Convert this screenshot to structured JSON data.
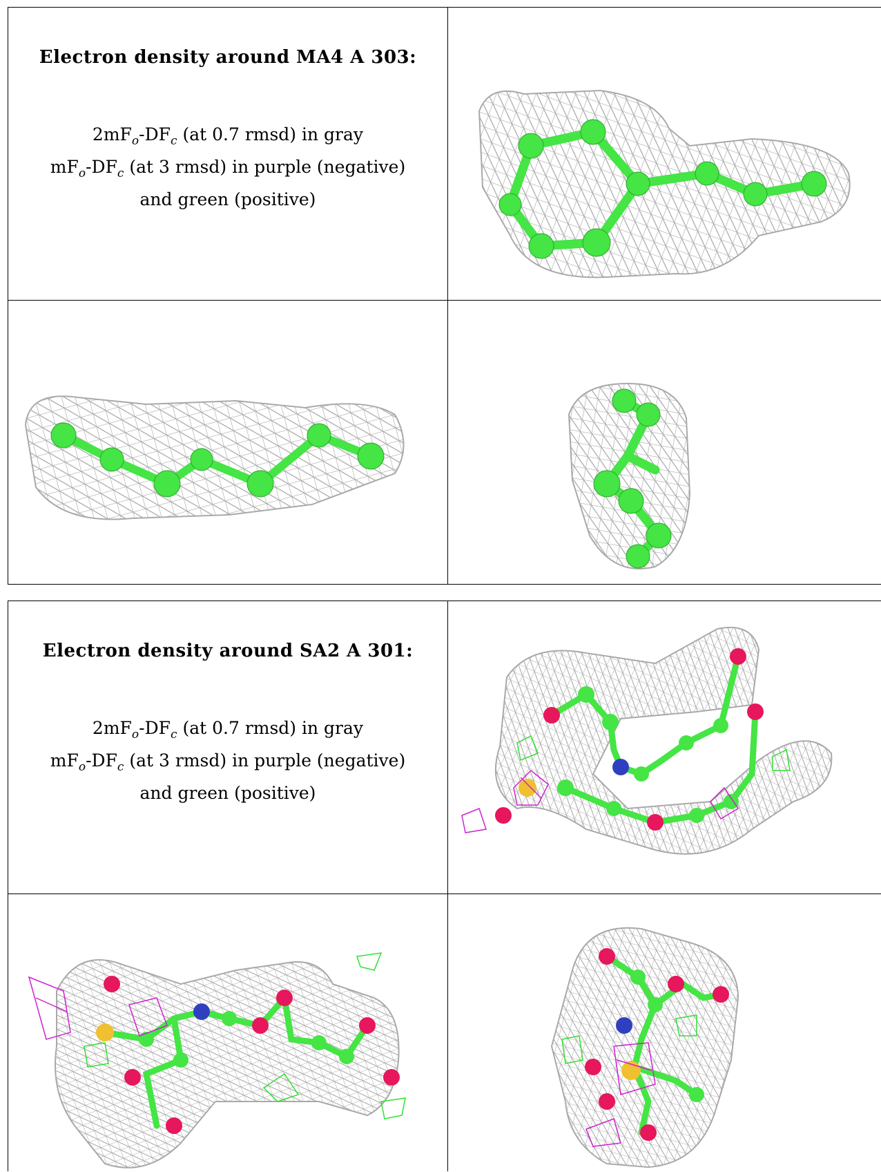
{
  "sections": [
    {
      "title": "Electron density around MA4 A 303:",
      "legend": {
        "line1": {
          "pre": "2mF",
          "s1": "o",
          "mid": "-DF",
          "s2": "c",
          "post": " (at 0.7 rmsd) in gray"
        },
        "line2": {
          "pre": "mF",
          "s1": "o",
          "mid": "-DF",
          "s2": "c",
          "post": " (at 3 rmsd) in purple (negative)"
        },
        "line3": "and green (positive)"
      }
    },
    {
      "title": "Electron density around SA2 A 301:",
      "legend": {
        "line1": {
          "pre": "2mF",
          "s1": "o",
          "mid": "-DF",
          "s2": "c",
          "post": " (at 0.7 rmsd) in gray"
        },
        "line2": {
          "pre": "mF",
          "s1": "o",
          "mid": "-DF",
          "s2": "c",
          "post": " (at 3 rmsd) in purple (negative)"
        },
        "line3": "and green (positive)"
      }
    }
  ],
  "colors": {
    "mesh_gray": "#a9a9a9",
    "carbon_green": "#44e544",
    "oxygen_red": "#e6175c",
    "nitrogen_blue": "#2f3fbf",
    "sulfur_yellow": "#f0c030",
    "negative_purple": "#d020d0",
    "positive_green": "#30e030"
  }
}
